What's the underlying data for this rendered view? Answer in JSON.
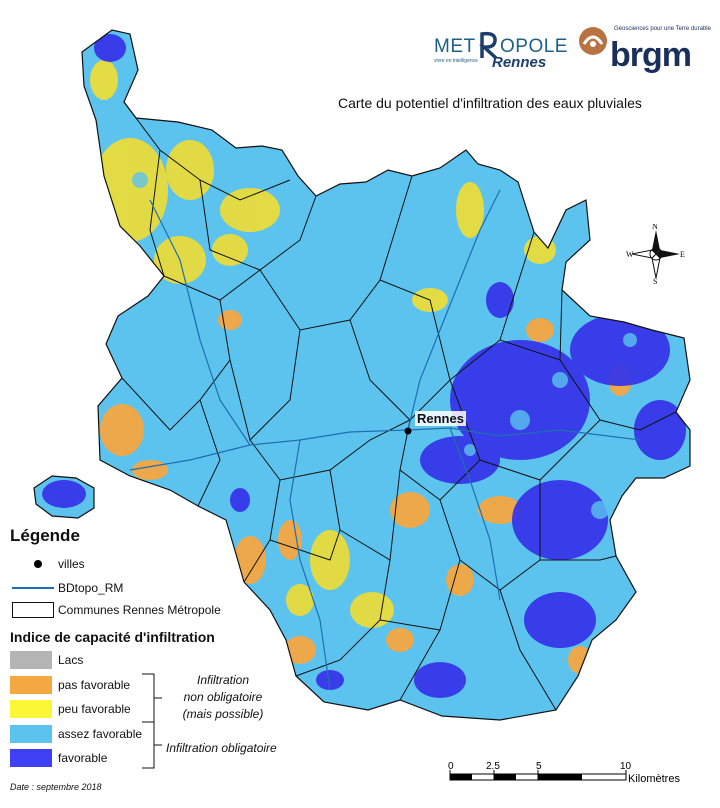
{
  "header": {
    "logo_metropole": {
      "part1": "MET",
      "part2": "OPOLE",
      "tagline": "vivre en intelligence",
      "rennes": "Rennes"
    },
    "logo_brgm": {
      "tagline": "Géosciences pour une Terre durable",
      "word": "brgm"
    },
    "title": "Carte du potentiel d'infiltration des eaux pluviales"
  },
  "map": {
    "city_label": "Rennes",
    "compass": {
      "north": "N",
      "south": "S",
      "east": "E",
      "west": "W"
    }
  },
  "legend": {
    "title": "Légende",
    "villes": "villes",
    "rivers": "BDtopo_RM",
    "communes": "Communes Rennes Métropole",
    "index_title": "Indice de capacité d'infiltration",
    "classes": [
      {
        "label": "Lacs",
        "color": "#b4b4b4"
      },
      {
        "label": "pas favorable",
        "color": "#f5a742"
      },
      {
        "label": "peu favorable",
        "color": "#fbf736"
      },
      {
        "label": "assez favorable",
        "color": "#5cc3ef"
      },
      {
        "label": "favorable",
        "color": "#3f3ff4"
      }
    ],
    "group_non_obligatoire": {
      "line1": "Infiltration",
      "line2": "non obligatoire",
      "line3": "(mais possible)"
    },
    "group_obligatoire": "Infiltration obligatoire"
  },
  "scale_bar": {
    "ticks": [
      "0",
      "2.5",
      "5",
      "10"
    ],
    "unit": "Kilomètres"
  },
  "footer": {
    "date": "Date : septembre 2018"
  }
}
